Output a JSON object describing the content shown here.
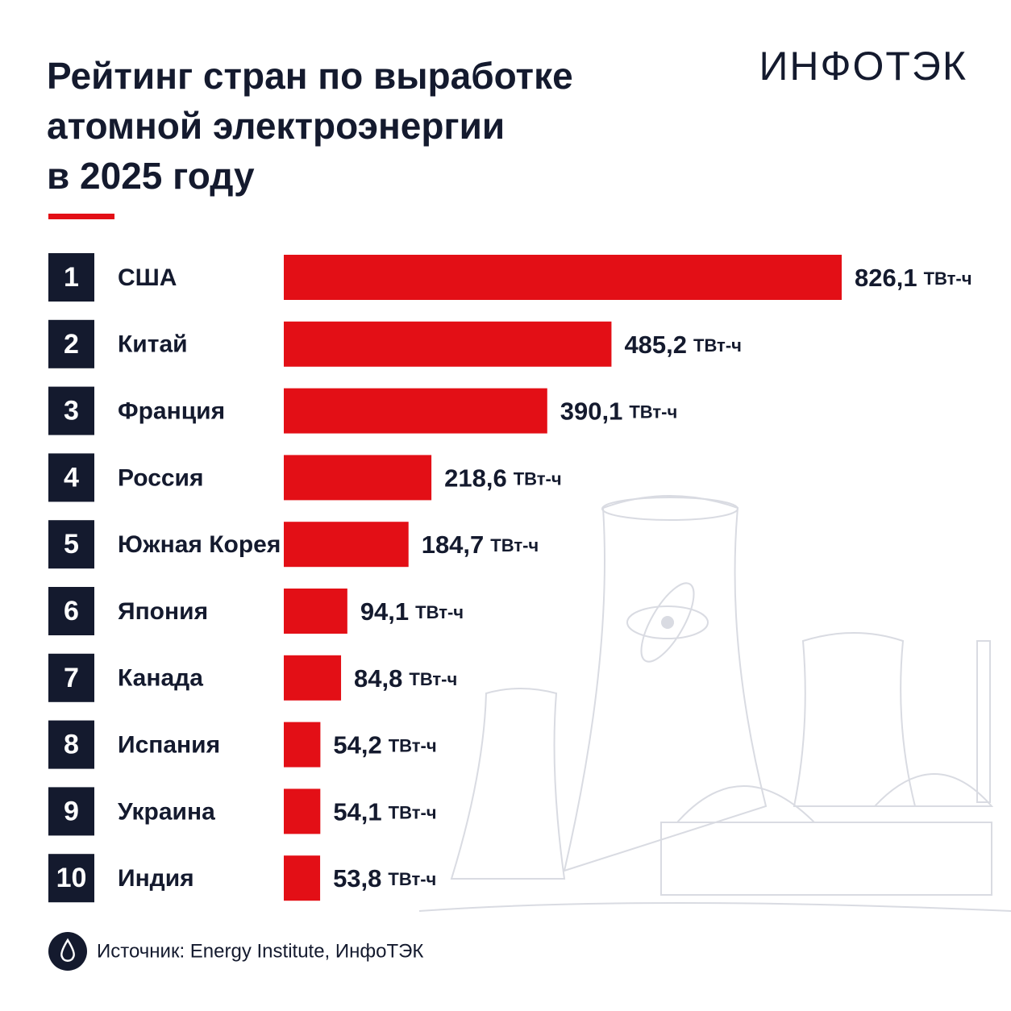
{
  "chart_data": {
    "type": "bar",
    "title": [
      "Рейтинг стран по выработке",
      "атомной электроэнергии",
      "в 2025 году"
    ],
    "logo": "ИНФОТЭК",
    "ranks": [
      1,
      2,
      3,
      4,
      5,
      6,
      7,
      8,
      9,
      10
    ],
    "categories": [
      "США",
      "Китай",
      "Франция",
      "Россия",
      "Южная Корея",
      "Япония",
      "Канада",
      "Испания",
      "Украина",
      "Индия"
    ],
    "values": [
      826.1,
      485.2,
      390.1,
      218.6,
      184.7,
      94.1,
      84.8,
      54.2,
      54.1,
      53.8
    ],
    "value_labels": [
      "826,1",
      "485,2",
      "390,1",
      "218,6",
      "184,7",
      "94,1",
      "84,8",
      "54,2",
      "54,1",
      "53,8"
    ],
    "unit": "ТВт-ч",
    "color": "#e30f16",
    "source": "Источник: Energy Institute, ИнфоТЭК"
  }
}
